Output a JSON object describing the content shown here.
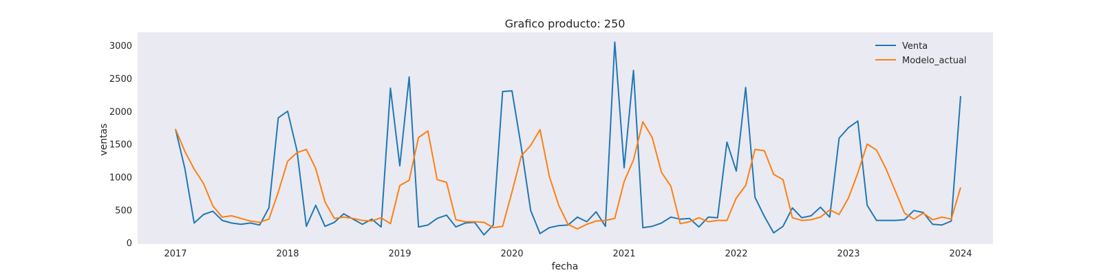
{
  "chart_data": {
    "type": "line",
    "title": "Grafico producto: 250",
    "xlabel": "fecha",
    "ylabel": "ventas",
    "x_start": "2017-01",
    "x_frequency": "monthly",
    "x_ticks": [
      "2017",
      "2018",
      "2019",
      "2020",
      "2021",
      "2022",
      "2023",
      "2024"
    ],
    "y_ticks": [
      "0",
      "500",
      "1000",
      "1500",
      "2000",
      "2500",
      "3000"
    ],
    "ylim": [
      -20,
      3200
    ],
    "grid": false,
    "background": "#eaeaf2",
    "legend_position": "upper right",
    "series": [
      {
        "name": "Venta",
        "color": "#1f77b4",
        "values": [
          1730,
          1130,
          300,
          430,
          480,
          340,
          300,
          280,
          300,
          270,
          530,
          1900,
          2000,
          1400,
          250,
          570,
          250,
          310,
          440,
          360,
          280,
          360,
          240,
          2350,
          1170,
          2520,
          240,
          270,
          370,
          420,
          240,
          300,
          310,
          120,
          270,
          2300,
          2310,
          1450,
          490,
          140,
          230,
          260,
          270,
          390,
          320,
          470,
          250,
          3050,
          1140,
          2620,
          230,
          250,
          300,
          390,
          360,
          370,
          240,
          390,
          380,
          1530,
          1090,
          2360,
          690,
          400,
          150,
          250,
          530,
          380,
          410,
          540,
          390,
          1590,
          1750,
          1850,
          570,
          340,
          340,
          340,
          350,
          490,
          460,
          280,
          270,
          330,
          2230
        ]
      },
      {
        "name": "Modelo_actual",
        "color": "#ff7f0e",
        "values": [
          1730,
          1390,
          1120,
          900,
          560,
          390,
          410,
          370,
          330,
          310,
          360,
          770,
          1240,
          1370,
          1420,
          1130,
          620,
          370,
          390,
          370,
          340,
          330,
          380,
          290,
          870,
          950,
          1600,
          1700,
          960,
          920,
          350,
          320,
          320,
          310,
          230,
          250,
          770,
          1320,
          1480,
          1720,
          1010,
          570,
          280,
          210,
          280,
          330,
          340,
          370,
          930,
          1260,
          1840,
          1600,
          1070,
          860,
          290,
          320,
          380,
          320,
          340,
          340,
          680,
          870,
          1420,
          1400,
          1040,
          960,
          380,
          340,
          350,
          390,
          500,
          430,
          680,
          1060,
          1500,
          1410,
          1130,
          790,
          450,
          360,
          450,
          350,
          390,
          360,
          840
        ]
      }
    ]
  }
}
